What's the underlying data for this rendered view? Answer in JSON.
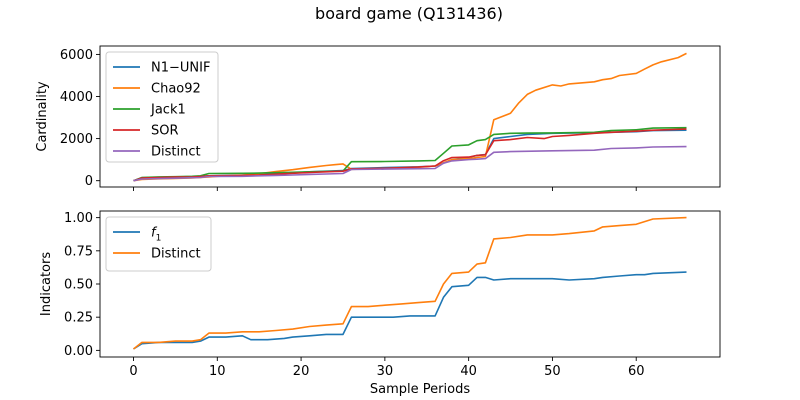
{
  "title": "board game (Q131436)",
  "chart_data": [
    {
      "type": "line",
      "ylabel": "Cardinality",
      "xlabel": "",
      "xlim": [
        -4,
        70
      ],
      "ylim": [
        -300,
        6400
      ],
      "xticks": [
        0,
        10,
        20,
        30,
        40,
        50,
        60
      ],
      "yticks": [
        0,
        2000,
        4000,
        6000
      ],
      "legend_position": "upper-left",
      "grid": false,
      "series": [
        {
          "name": "N1−UNIF",
          "color": "#1f77b4",
          "x": [
            0,
            1,
            3,
            5,
            7,
            8,
            9,
            12,
            13,
            15,
            17,
            19,
            21,
            23,
            25,
            26,
            30,
            34,
            36,
            37,
            38,
            40,
            41,
            42,
            43,
            45,
            47,
            50,
            55,
            57,
            60,
            62,
            66
          ],
          "y": [
            0,
            140,
            160,
            180,
            190,
            200,
            230,
            250,
            260,
            290,
            330,
            370,
            420,
            450,
            480,
            580,
            620,
            660,
            700,
            830,
            1000,
            1100,
            1200,
            1240,
            2000,
            2100,
            2200,
            2250,
            2280,
            2300,
            2330,
            2380,
            2400
          ]
        },
        {
          "name": "Chao92",
          "color": "#ff7f0e",
          "x": [
            0,
            1,
            3,
            5,
            7,
            8,
            9,
            10,
            13,
            15,
            17,
            19,
            21,
            23,
            24,
            25,
            26,
            30,
            34,
            36,
            37,
            38,
            40,
            41,
            42,
            43,
            45,
            46,
            47,
            48,
            50,
            51,
            52,
            55,
            56,
            57,
            58,
            60,
            61,
            62,
            63,
            65,
            66
          ],
          "y": [
            0,
            60,
            90,
            110,
            130,
            150,
            180,
            210,
            260,
            330,
            430,
            520,
            630,
            720,
            760,
            800,
            540,
            580,
            640,
            700,
            850,
            1000,
            1050,
            1100,
            1150,
            2900,
            3200,
            3700,
            4100,
            4300,
            4550,
            4500,
            4600,
            4700,
            4800,
            4850,
            5000,
            5100,
            5300,
            5500,
            5650,
            5850,
            6050
          ]
        },
        {
          "name": "Jack1",
          "color": "#2ca02c",
          "x": [
            0,
            1,
            3,
            5,
            7,
            8,
            9,
            13,
            15,
            17,
            19,
            21,
            23,
            25,
            26,
            30,
            34,
            36,
            37,
            38,
            40,
            41,
            42,
            43,
            45,
            47,
            50,
            55,
            57,
            60,
            62,
            66
          ],
          "y": [
            0,
            150,
            180,
            190,
            210,
            230,
            340,
            350,
            360,
            380,
            400,
            420,
            440,
            460,
            900,
            910,
            940,
            960,
            1300,
            1650,
            1700,
            1900,
            1950,
            2200,
            2250,
            2260,
            2270,
            2300,
            2380,
            2420,
            2500,
            2520
          ]
        },
        {
          "name": "SOR",
          "color": "#d62728",
          "x": [
            0,
            1,
            3,
            5,
            7,
            8,
            9,
            13,
            15,
            17,
            19,
            21,
            23,
            25,
            26,
            30,
            34,
            36,
            37,
            38,
            40,
            41,
            42,
            43,
            45,
            47,
            49,
            50,
            52,
            55,
            57,
            60,
            62,
            66
          ],
          "y": [
            0,
            130,
            150,
            170,
            180,
            200,
            230,
            250,
            270,
            310,
            350,
            390,
            420,
            450,
            560,
            590,
            650,
            700,
            950,
            1100,
            1120,
            1200,
            1230,
            1900,
            1950,
            2050,
            2000,
            2100,
            2150,
            2250,
            2300,
            2350,
            2400,
            2450
          ]
        },
        {
          "name": "Distinct",
          "color": "#9467bd",
          "x": [
            0,
            1,
            3,
            5,
            7,
            8,
            9,
            13,
            15,
            17,
            19,
            21,
            23,
            25,
            26,
            30,
            34,
            36,
            37,
            38,
            40,
            41,
            42,
            43,
            45,
            50,
            55,
            57,
            60,
            62,
            66
          ],
          "y": [
            0,
            80,
            100,
            120,
            140,
            150,
            200,
            210,
            230,
            250,
            270,
            300,
            320,
            340,
            530,
            550,
            570,
            580,
            830,
            940,
            1000,
            1020,
            1050,
            1350,
            1380,
            1420,
            1450,
            1530,
            1560,
            1600,
            1620
          ]
        }
      ]
    },
    {
      "type": "line",
      "ylabel": "Indicators",
      "xlabel": "Sample Periods",
      "xlim": [
        -4,
        70
      ],
      "ylim": [
        -0.05,
        1.05
      ],
      "xticks": [
        0,
        10,
        20,
        30,
        40,
        50,
        60
      ],
      "yticks": [
        0.0,
        0.25,
        0.5,
        0.75,
        1.0
      ],
      "ytick_labels": [
        "0.00",
        "0.25",
        "0.50",
        "0.75",
        "1.00"
      ],
      "xtick_labels": [
        "0",
        "10",
        "20",
        "30",
        "40",
        "50",
        "60"
      ],
      "legend_position": "upper-left",
      "grid": false,
      "series": [
        {
          "name": "f1",
          "color": "#1f77b4",
          "x": [
            0,
            1,
            3,
            5,
            7,
            8,
            9,
            11,
            13,
            14,
            16,
            18,
            19,
            21,
            23,
            25,
            26,
            28,
            29,
            31,
            33,
            36,
            37,
            38,
            40,
            41,
            42,
            43,
            45,
            50,
            52,
            55,
            56,
            58,
            60,
            61,
            62,
            66
          ],
          "y": [
            0.01,
            0.05,
            0.06,
            0.06,
            0.06,
            0.07,
            0.1,
            0.1,
            0.11,
            0.08,
            0.08,
            0.09,
            0.1,
            0.11,
            0.12,
            0.12,
            0.25,
            0.25,
            0.25,
            0.25,
            0.26,
            0.26,
            0.4,
            0.48,
            0.49,
            0.55,
            0.55,
            0.53,
            0.54,
            0.54,
            0.53,
            0.54,
            0.55,
            0.56,
            0.57,
            0.57,
            0.58,
            0.59
          ]
        },
        {
          "name": "Distinct",
          "color": "#ff7f0e",
          "x": [
            0,
            1,
            3,
            5,
            7,
            8,
            9,
            11,
            13,
            15,
            17,
            19,
            21,
            23,
            25,
            26,
            28,
            30,
            32,
            34,
            36,
            37,
            38,
            40,
            41,
            42,
            43,
            45,
            47,
            50,
            52,
            55,
            56,
            58,
            60,
            61,
            62,
            66
          ],
          "y": [
            0.01,
            0.06,
            0.06,
            0.07,
            0.07,
            0.08,
            0.13,
            0.13,
            0.14,
            0.14,
            0.15,
            0.16,
            0.18,
            0.19,
            0.2,
            0.33,
            0.33,
            0.34,
            0.35,
            0.36,
            0.37,
            0.5,
            0.58,
            0.59,
            0.65,
            0.66,
            0.84,
            0.85,
            0.87,
            0.87,
            0.88,
            0.9,
            0.93,
            0.94,
            0.95,
            0.97,
            0.99,
            1.0
          ]
        }
      ]
    }
  ]
}
